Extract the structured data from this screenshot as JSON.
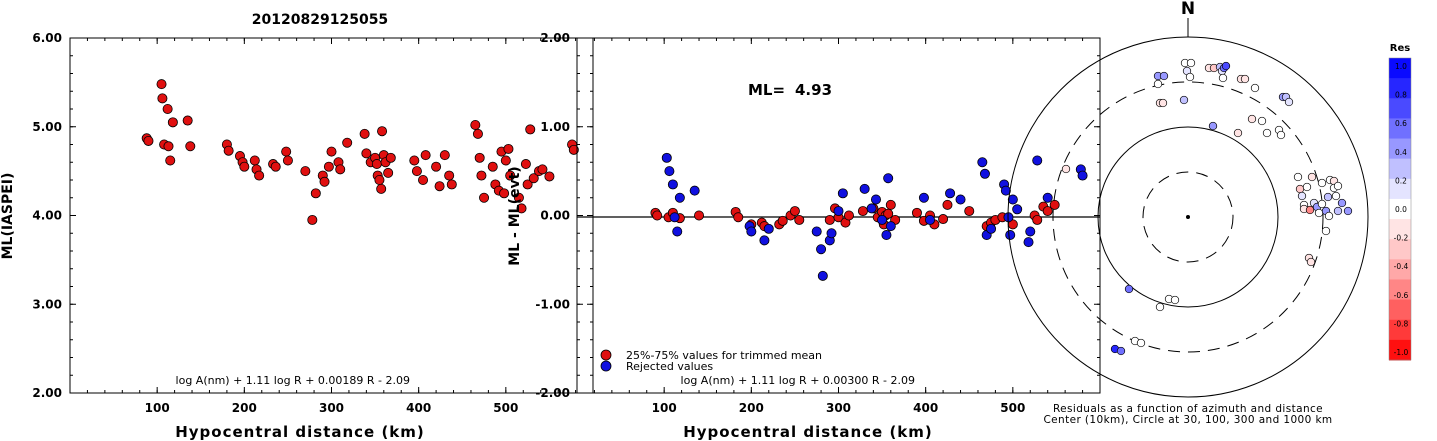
{
  "page_title": "20120829125055",
  "chart_data": [
    {
      "type": "scatter",
      "xlabel": "Hypocentral distance (km)",
      "ylabel": "ML(IASPEI)",
      "xlim": [
        0,
        600
      ],
      "ylim": [
        2.0,
        6.0
      ],
      "xticks": [
        "100",
        "200",
        "300",
        "400",
        "500"
      ],
      "yticks": [
        "2.00",
        "3.00",
        "4.00",
        "5.00",
        "6.00"
      ],
      "annotation": "log A(nm) + 1.11 log R + 0.00189 R - 2.09",
      "series": [
        {
          "color": "#e01010",
          "points": [
            [
              88,
              4.87
            ],
            [
              90,
              4.84
            ],
            [
              105,
              5.48
            ],
            [
              106,
              5.32
            ],
            [
              108,
              4.8
            ],
            [
              112,
              5.2
            ],
            [
              113,
              4.78
            ],
            [
              115,
              4.62
            ],
            [
              118,
              5.05
            ],
            [
              135,
              5.07
            ],
            [
              138,
              4.78
            ],
            [
              180,
              4.8
            ],
            [
              182,
              4.73
            ],
            [
              195,
              4.67
            ],
            [
              198,
              4.6
            ],
            [
              200,
              4.55
            ],
            [
              212,
              4.62
            ],
            [
              214,
              4.52
            ],
            [
              217,
              4.45
            ],
            [
              233,
              4.58
            ],
            [
              236,
              4.55
            ],
            [
              248,
              4.72
            ],
            [
              250,
              4.62
            ],
            [
              270,
              4.5
            ],
            [
              278,
              3.95
            ],
            [
              282,
              4.25
            ],
            [
              290,
              4.45
            ],
            [
              292,
              4.38
            ],
            [
              297,
              4.55
            ],
            [
              300,
              4.72
            ],
            [
              308,
              4.6
            ],
            [
              310,
              4.52
            ],
            [
              318,
              4.82
            ],
            [
              338,
              4.92
            ],
            [
              340,
              4.7
            ],
            [
              345,
              4.6
            ],
            [
              350,
              4.65
            ],
            [
              352,
              4.58
            ],
            [
              353,
              4.45
            ],
            [
              355,
              4.4
            ],
            [
              357,
              4.3
            ],
            [
              358,
              4.95
            ],
            [
              360,
              4.68
            ],
            [
              362,
              4.6
            ],
            [
              365,
              4.48
            ],
            [
              368,
              4.65
            ],
            [
              395,
              4.62
            ],
            [
              398,
              4.5
            ],
            [
              405,
              4.4
            ],
            [
              408,
              4.68
            ],
            [
              420,
              4.55
            ],
            [
              424,
              4.33
            ],
            [
              430,
              4.68
            ],
            [
              435,
              4.45
            ],
            [
              438,
              4.35
            ],
            [
              465,
              5.02
            ],
            [
              468,
              4.92
            ],
            [
              470,
              4.65
            ],
            [
              472,
              4.45
            ],
            [
              475,
              4.2
            ],
            [
              485,
              4.55
            ],
            [
              488,
              4.35
            ],
            [
              492,
              4.28
            ],
            [
              495,
              4.72
            ],
            [
              498,
              4.25
            ],
            [
              500,
              4.62
            ],
            [
              503,
              4.75
            ],
            [
              505,
              4.45
            ],
            [
              515,
              4.2
            ],
            [
              518,
              4.08
            ],
            [
              523,
              4.58
            ],
            [
              525,
              4.35
            ],
            [
              528,
              4.97
            ],
            [
              532,
              4.42
            ],
            [
              538,
              4.5
            ],
            [
              542,
              4.52
            ],
            [
              550,
              4.44
            ],
            [
              576,
              4.8
            ],
            [
              578,
              4.74
            ]
          ]
        }
      ]
    },
    {
      "type": "scatter",
      "xlabel": "Hypocentral distance (km)",
      "ylabel": "ML - ML(evt)",
      "xlim": [
        0,
        600
      ],
      "ylim": [
        -2.0,
        2.0
      ],
      "xticks": [
        "100",
        "200",
        "300",
        "400",
        "500"
      ],
      "yticks": [
        "-2.00",
        "-1.00",
        "0.00",
        "1.00",
        "2.00"
      ],
      "ml_label": "ML=",
      "ml_value": "4.93",
      "annotation": "log A(nm) + 1.11 log R + 0.00300 R - 2.09",
      "legend": [
        {
          "label": "25%-75% values for trimmed mean",
          "color": "#e01010"
        },
        {
          "label": "Rejected values",
          "color": "#1010e0"
        }
      ],
      "series": [
        {
          "name": "25%-75% values for trimmed mean",
          "color": "#e01010",
          "points": [
            [
              90,
              0.03
            ],
            [
              92,
              0.0
            ],
            [
              105,
              -0.02
            ],
            [
              110,
              0.03
            ],
            [
              118,
              -0.03
            ],
            [
              140,
              0.0
            ],
            [
              182,
              0.04
            ],
            [
              185,
              -0.02
            ],
            [
              200,
              -0.1
            ],
            [
              212,
              -0.08
            ],
            [
              215,
              -0.12
            ],
            [
              232,
              -0.1
            ],
            [
              236,
              -0.06
            ],
            [
              245,
              0.0
            ],
            [
              250,
              0.05
            ],
            [
              255,
              -0.05
            ],
            [
              290,
              -0.05
            ],
            [
              296,
              0.08
            ],
            [
              300,
              -0.02
            ],
            [
              308,
              -0.08
            ],
            [
              312,
              0.0
            ],
            [
              328,
              0.05
            ],
            [
              340,
              0.08
            ],
            [
              345,
              -0.02
            ],
            [
              350,
              0.04
            ],
            [
              352,
              -0.1
            ],
            [
              354,
              0.0
            ],
            [
              357,
              0.02
            ],
            [
              360,
              0.12
            ],
            [
              365,
              -0.05
            ],
            [
              390,
              0.03
            ],
            [
              398,
              -0.06
            ],
            [
              405,
              0.0
            ],
            [
              410,
              -0.1
            ],
            [
              420,
              -0.04
            ],
            [
              425,
              0.12
            ],
            [
              450,
              0.05
            ],
            [
              470,
              -0.12
            ],
            [
              475,
              -0.08
            ],
            [
              480,
              -0.05
            ],
            [
              488,
              -0.02
            ],
            [
              500,
              -0.1
            ],
            [
              525,
              0.0
            ],
            [
              528,
              -0.05
            ],
            [
              535,
              0.1
            ],
            [
              540,
              0.05
            ],
            [
              548,
              0.12
            ]
          ]
        },
        {
          "name": "Rejected values",
          "color": "#1010e0",
          "points": [
            [
              103,
              0.65
            ],
            [
              106,
              0.5
            ],
            [
              110,
              0.35
            ],
            [
              112,
              -0.02
            ],
            [
              115,
              -0.18
            ],
            [
              118,
              0.2
            ],
            [
              135,
              0.28
            ],
            [
              198,
              -0.12
            ],
            [
              200,
              -0.18
            ],
            [
              215,
              -0.28
            ],
            [
              220,
              -0.15
            ],
            [
              275,
              -0.18
            ],
            [
              280,
              -0.38
            ],
            [
              282,
              -0.68
            ],
            [
              290,
              -0.28
            ],
            [
              292,
              -0.2
            ],
            [
              300,
              0.05
            ],
            [
              305,
              0.25
            ],
            [
              330,
              0.3
            ],
            [
              338,
              0.08
            ],
            [
              343,
              0.18
            ],
            [
              350,
              -0.05
            ],
            [
              355,
              -0.22
            ],
            [
              357,
              0.42
            ],
            [
              360,
              -0.12
            ],
            [
              398,
              0.2
            ],
            [
              405,
              -0.05
            ],
            [
              428,
              0.25
            ],
            [
              440,
              0.18
            ],
            [
              465,
              0.6
            ],
            [
              468,
              0.47
            ],
            [
              470,
              -0.22
            ],
            [
              475,
              -0.15
            ],
            [
              490,
              0.35
            ],
            [
              492,
              0.28
            ],
            [
              495,
              -0.02
            ],
            [
              497,
              -0.22
            ],
            [
              500,
              0.18
            ],
            [
              505,
              0.07
            ],
            [
              518,
              -0.3
            ],
            [
              520,
              -0.18
            ],
            [
              528,
              0.62
            ],
            [
              540,
              0.2
            ],
            [
              578,
              0.52
            ],
            [
              580,
              0.45
            ]
          ]
        }
      ]
    },
    {
      "type": "scatter",
      "subtype": "polar-residuals",
      "north_label": "N",
      "caption_line1": "Residuals as a function of azimuth and distance",
      "caption_line2": "Center (10km), Circle at 30, 100, 300 and 1000 km",
      "colorbar_title": "Res",
      "colorbar_ticks": [
        "1.0",
        "0.8",
        "0.6",
        "0.4",
        "0.2",
        "0.0",
        "-0.2",
        "-0.4",
        "-0.6",
        "-0.8",
        "-1.0"
      ],
      "colorbar_colors": [
        "#0a0aff",
        "#2626ff",
        "#4a4aff",
        "#7070ff",
        "#9898ff",
        "#c0c0ff",
        "#e4e4ff",
        "#ffffff",
        "#ffe4e4",
        "#ffc8c8",
        "#ffa8a8",
        "#ff8686",
        "#ff6060",
        "#ff3a3a",
        "#ff1010"
      ],
      "points": [
        [
          1158,
          76,
          0.4
        ],
        [
          1158,
          84,
          0.0
        ],
        [
          1160,
          103,
          -0.2
        ],
        [
          1163,
          103,
          -0.1
        ],
        [
          1164,
          76,
          0.5
        ],
        [
          1185,
          63,
          0.0
        ],
        [
          1187,
          71,
          0.1
        ],
        [
          1191,
          63,
          0.0
        ],
        [
          1190,
          77,
          0.0
        ],
        [
          1209,
          68,
          -0.2
        ],
        [
          1214,
          68,
          -0.3
        ],
        [
          1220,
          67,
          0.3
        ],
        [
          1222,
          71,
          0.2
        ],
        [
          1224,
          68,
          0.6
        ],
        [
          1226,
          66,
          0.7
        ],
        [
          1223,
          78,
          0.0
        ],
        [
          1241,
          79,
          -0.1
        ],
        [
          1245,
          79,
          -0.2
        ],
        [
          1255,
          88,
          0.0
        ],
        [
          1283,
          97,
          0.5
        ],
        [
          1286,
          97,
          0.3
        ],
        [
          1289,
          102,
          0.2
        ],
        [
          1184,
          100,
          0.3
        ],
        [
          1213,
          126,
          0.4
        ],
        [
          1238,
          133,
          -0.1
        ],
        [
          1252,
          119,
          -0.1
        ],
        [
          1262,
          121,
          0.0
        ],
        [
          1267,
          133,
          0.0
        ],
        [
          1279,
          130,
          0.0
        ],
        [
          1281,
          135,
          0.0
        ],
        [
          1066,
          169,
          -0.2
        ],
        [
          1298,
          177,
          0.0
        ],
        [
          1300,
          189,
          -0.3
        ],
        [
          1302,
          196,
          0.1
        ],
        [
          1304,
          205,
          0.0
        ],
        [
          1304,
          209,
          -0.1
        ],
        [
          1310,
          210,
          -0.6
        ],
        [
          1314,
          203,
          0.2
        ],
        [
          1317,
          207,
          0.4
        ],
        [
          1319,
          213,
          0.0
        ],
        [
          1307,
          187,
          0.0
        ],
        [
          1312,
          177,
          -0.1
        ],
        [
          1322,
          183,
          0.0
        ],
        [
          1328,
          197,
          0.3
        ],
        [
          1330,
          180,
          0.0
        ],
        [
          1334,
          181,
          -0.2
        ],
        [
          1334,
          188,
          0.0
        ],
        [
          1338,
          186,
          0.0
        ],
        [
          1336,
          196,
          0.0
        ],
        [
          1338,
          211,
          0.3
        ],
        [
          1342,
          203,
          0.5
        ],
        [
          1348,
          211,
          0.5
        ],
        [
          1326,
          211,
          0.5
        ],
        [
          1322,
          204,
          0.0
        ],
        [
          1329,
          216,
          0.0
        ],
        [
          1326,
          231,
          0.0
        ],
        [
          1309,
          258,
          -0.2
        ],
        [
          1311,
          262,
          -0.1
        ],
        [
          1129,
          289,
          0.6
        ],
        [
          1160,
          307,
          0.0
        ],
        [
          1169,
          299,
          0.0
        ],
        [
          1175,
          300,
          0.0
        ],
        [
          1115,
          349,
          0.8
        ],
        [
          1121,
          351,
          0.6
        ],
        [
          1135,
          341,
          0.0
        ],
        [
          1141,
          343,
          0.0
        ]
      ]
    }
  ]
}
